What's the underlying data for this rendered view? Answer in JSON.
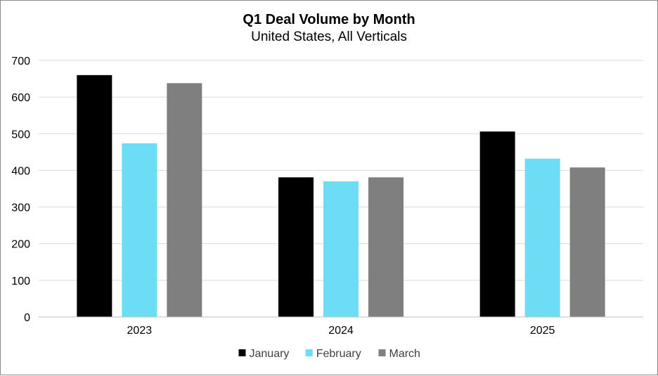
{
  "chart_data": {
    "type": "bar",
    "title": "Q1 Deal Volume by Month",
    "subtitle": "United States, All Verticals",
    "categories": [
      "2023",
      "2024",
      "2025"
    ],
    "series": [
      {
        "name": "January",
        "values": [
          660,
          381,
          506
        ],
        "color": "#000000"
      },
      {
        "name": "February",
        "values": [
          474,
          370,
          432
        ],
        "color": "#6ddcf5"
      },
      {
        "name": "March",
        "values": [
          638,
          381,
          408
        ],
        "color": "#7f7f7f"
      }
    ],
    "yticks": [
      "0",
      "100",
      "200",
      "300",
      "400",
      "500",
      "600",
      "700"
    ],
    "ylim": [
      0,
      700
    ],
    "grid": true,
    "legend_position": "bottom",
    "xlabel": "",
    "ylabel": ""
  }
}
